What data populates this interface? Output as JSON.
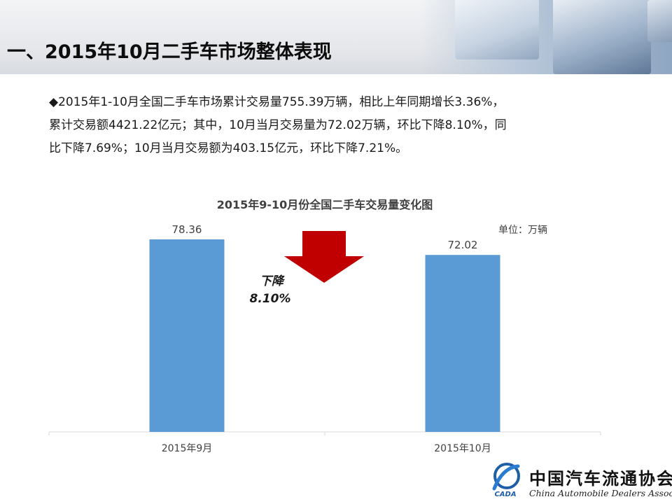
{
  "page_title": "一、2015年10月二手车市场整体表现",
  "summary": {
    "bullet": "◆",
    "line1": "2015年1-10月全国二手车市场累计交易量755.39万辆，相比上年同期增长3.36%，",
    "line2": "累计交易额4421.22亿元；其中，10月当月交易量为72.02万辆，环比下降8.10%，同",
    "line3": "比下降7.69%；10月当月交易额为403.15亿元，环比下降7.21%。"
  },
  "chart_data": {
    "type": "bar",
    "title": "2015年9-10月份全国二手车交易量变化图",
    "unit_label": "单位：万辆",
    "categories": [
      "2015年9月",
      "2015年10月"
    ],
    "values": [
      78.36,
      72.02
    ],
    "value_labels": [
      "78.36",
      "72.02"
    ],
    "ylim": [
      0,
      100
    ],
    "grid": false,
    "bar_color": "#5b9bd5",
    "annotation": {
      "line1": "下降",
      "line2": "8.10%",
      "arrow_color": "#c00000"
    }
  },
  "logo": {
    "cn_name": "中国汽车流通协会",
    "en_name": "China Automobile Dealers Association",
    "abbr": "CADA"
  }
}
